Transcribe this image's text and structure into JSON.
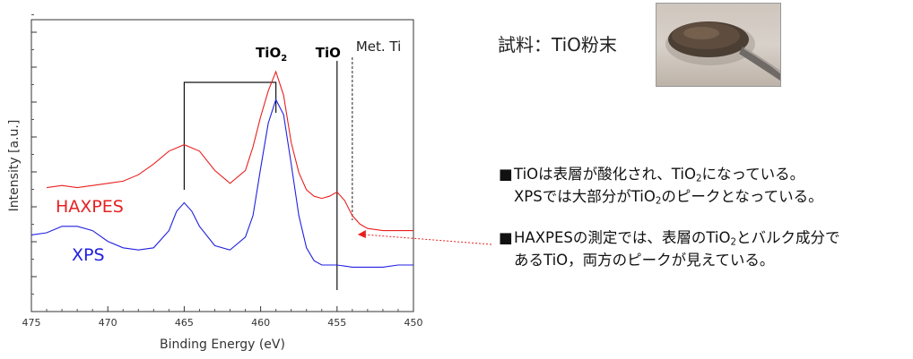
{
  "chart_data": {
    "type": "line",
    "title": "",
    "xlabel": "Binding Energy (eV)",
    "ylabel": "Intensity [a.u.]",
    "xlim": [
      475,
      450
    ],
    "x_reversed": true,
    "x_ticks": [
      475,
      470,
      465,
      460,
      455,
      450
    ],
    "grid": false,
    "series": [
      {
        "name": "HAXPES",
        "color": "#e82020",
        "x": [
          474,
          473,
          472,
          471,
          470,
          469,
          468,
          467,
          466,
          465,
          464,
          463,
          462,
          461,
          460.5,
          460,
          459.5,
          459,
          458.5,
          458,
          457.5,
          457,
          456.5,
          456,
          455.5,
          455,
          454.5,
          454,
          453.5,
          453,
          452,
          451,
          450
        ],
        "y": [
          0.41,
          0.42,
          0.41,
          0.42,
          0.43,
          0.44,
          0.47,
          0.52,
          0.58,
          0.61,
          0.58,
          0.49,
          0.43,
          0.49,
          0.6,
          0.74,
          0.86,
          0.95,
          0.84,
          0.62,
          0.48,
          0.4,
          0.37,
          0.36,
          0.37,
          0.39,
          0.35,
          0.28,
          0.24,
          0.22,
          0.21,
          0.21,
          0.21
        ]
      },
      {
        "name": "XPS",
        "color": "#2020e0",
        "x": [
          475,
          474,
          473,
          472,
          471,
          470,
          469,
          468,
          467,
          466,
          465.5,
          465,
          464.5,
          464,
          463,
          462,
          461,
          460.5,
          460,
          459.5,
          459,
          458.5,
          458,
          457.5,
          457,
          456.5,
          456,
          455,
          454,
          453,
          452,
          451,
          450
        ],
        "y": [
          0.19,
          0.2,
          0.23,
          0.23,
          0.21,
          0.16,
          0.13,
          0.12,
          0.13,
          0.21,
          0.3,
          0.34,
          0.3,
          0.23,
          0.14,
          0.12,
          0.18,
          0.28,
          0.5,
          0.71,
          0.82,
          0.75,
          0.52,
          0.28,
          0.13,
          0.07,
          0.05,
          0.05,
          0.04,
          0.04,
          0.04,
          0.05,
          0.05
        ]
      }
    ],
    "series_labels": [
      {
        "text": "HAXPES",
        "color": "#e82020"
      },
      {
        "text": "XPS",
        "color": "#2020e0"
      }
    ],
    "annotations": [
      {
        "text_main": "TiO",
        "text_sub": "2",
        "x": 459.0,
        "style": "bold"
      },
      {
        "text_main": "TiO",
        "text_sub": "",
        "x": 455.0,
        "style": "bold"
      },
      {
        "text_main": "Met. Ti",
        "text_sub": "",
        "x": 454.0,
        "style": "normal"
      }
    ],
    "doublet_bracket": {
      "x_left": 465.0,
      "x_right": 459.0
    },
    "peak_lines": [
      {
        "x": 455.0,
        "style": "solid"
      },
      {
        "x": 454.0,
        "style": "dashed"
      }
    ],
    "pointer_arrow": {
      "color": "#e82020",
      "target_x": 454.0
    }
  },
  "sample": {
    "label": "試料：TiO粉末"
  },
  "photo": {
    "name": "tio-powder-spatula-photo"
  },
  "notes": [
    {
      "bullet": "■",
      "line1": "TiOは表層が酸化され、TiO",
      "line1_sub": "2",
      "line1_end": "になっている。",
      "line2": "XPSでは大部分がTiO",
      "line2_sub": "2",
      "line2_end": "のピークとなっている。"
    },
    {
      "bullet": "■",
      "line1": "HAXPESの測定では、表層のTiO",
      "line1_sub": "2",
      "line1_end": "とバルク成分で",
      "line2": "あるTiO，両方のピークが見えている。",
      "line2_sub": "",
      "line2_end": ""
    }
  ]
}
